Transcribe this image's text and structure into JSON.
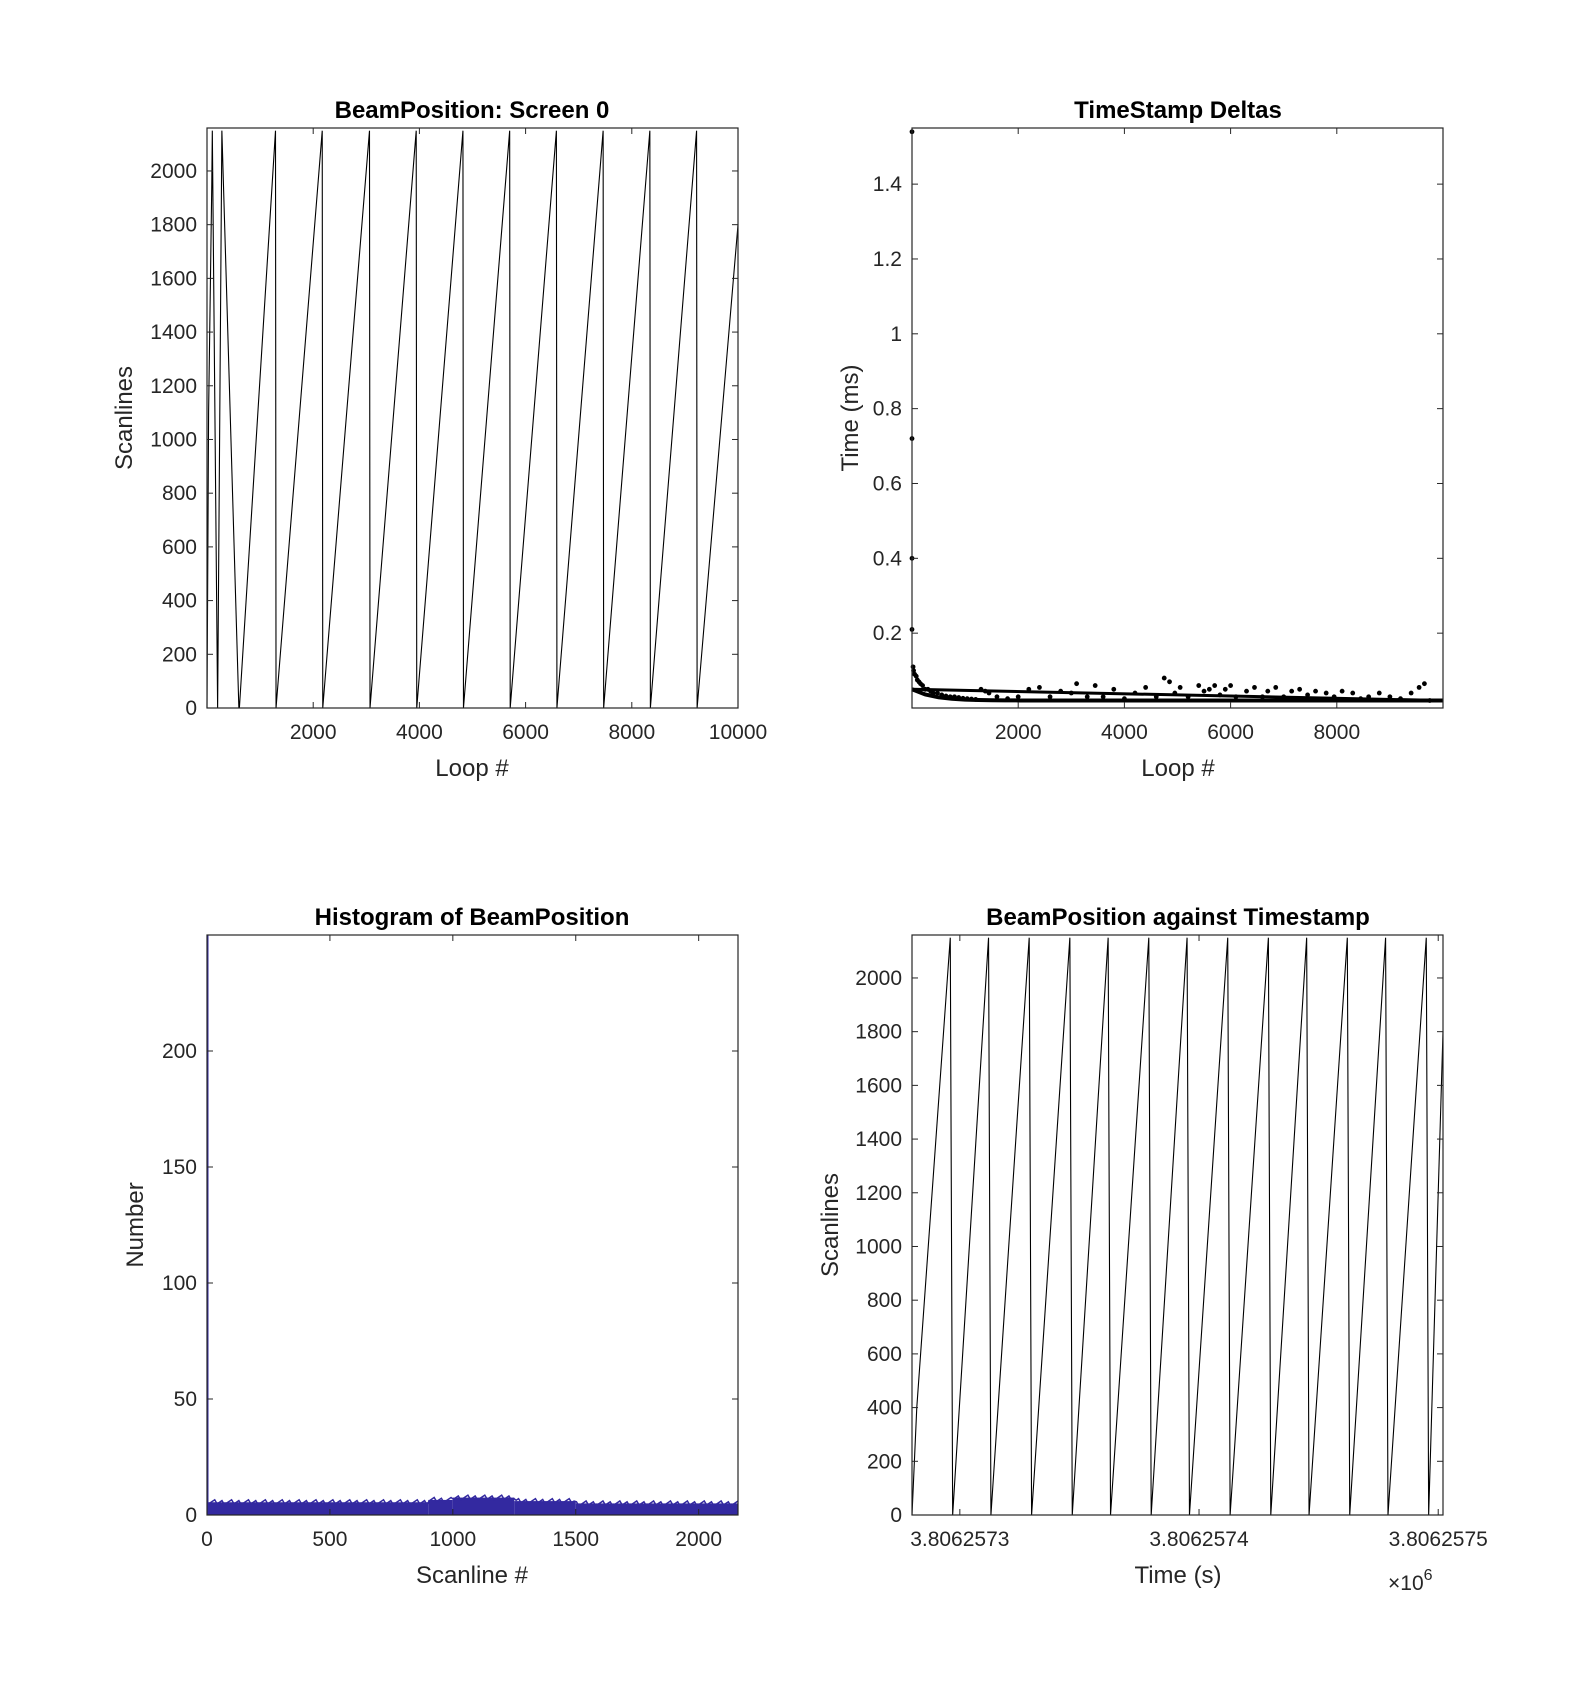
{
  "chart_data": [
    {
      "type": "line",
      "title": "BeamPosition: Screen 0",
      "xlabel": "Loop #",
      "ylabel": "Scanlines",
      "xlim": [
        0,
        10000
      ],
      "ylim": [
        0,
        2160
      ],
      "xticks": [
        2000,
        4000,
        6000,
        8000,
        10000
      ],
      "yticks": [
        0,
        200,
        400,
        600,
        800,
        1000,
        1200,
        1400,
        1600,
        1800,
        2000
      ],
      "tick_labels_x": [
        "2000",
        "4000",
        "6000",
        "8000",
        "10000"
      ],
      "tick_labels_y": [
        "0",
        "200",
        "400",
        "600",
        "800",
        "1000",
        "1200",
        "1400",
        "1600",
        "1800",
        "2000"
      ],
      "color": "#000000",
      "series": [
        {
          "x": [
            0,
            30,
            90,
            100,
            200,
            280,
            600,
            610,
            1290,
            1300,
            2170,
            2180,
            3060,
            3070,
            3940,
            3950,
            4820,
            4830,
            5700,
            5710,
            6580,
            6590,
            7460,
            7470,
            8340,
            8350,
            9220,
            9230,
            10000
          ],
          "y": [
            0,
            1100,
            1950,
            2150,
            0,
            2150,
            0,
            0,
            2150,
            0,
            2150,
            0,
            2150,
            0,
            2150,
            0,
            2150,
            0,
            2150,
            0,
            2150,
            0,
            2150,
            0,
            2150,
            0,
            2150,
            0,
            1800
          ]
        }
      ]
    },
    {
      "type": "scatter",
      "title": "TimeStamp Deltas",
      "xlabel": "Loop #",
      "ylabel": "Time (ms)",
      "xlim": [
        0,
        10000
      ],
      "ylim": [
        0,
        1.55
      ],
      "xticks": [
        2000,
        4000,
        6000,
        8000
      ],
      "yticks": [
        0.2,
        0.4,
        0.6,
        0.8,
        1.0,
        1.2,
        1.4
      ],
      "tick_labels_x": [
        "2000",
        "4000",
        "6000",
        "8000"
      ],
      "tick_labels_y": [
        "0.2",
        "0.4",
        "0.6",
        "0.8",
        "1",
        "1.2",
        "1.4"
      ],
      "color": "#000000",
      "points": [
        [
          0,
          1.54
        ],
        [
          0,
          0.72
        ],
        [
          0,
          0.4
        ],
        [
          0,
          0.21
        ],
        [
          20,
          0.11
        ],
        [
          30,
          0.1
        ],
        [
          50,
          0.09
        ],
        [
          80,
          0.085
        ],
        [
          100,
          0.075
        ],
        [
          130,
          0.07
        ],
        [
          160,
          0.065
        ],
        [
          200,
          0.06
        ],
        [
          250,
          0.05
        ],
        [
          300,
          0.05
        ],
        [
          350,
          0.045
        ],
        [
          400,
          0.04
        ],
        [
          480,
          0.04
        ],
        [
          560,
          0.035
        ],
        [
          640,
          0.032
        ],
        [
          720,
          0.03
        ],
        [
          800,
          0.03
        ],
        [
          880,
          0.028
        ],
        [
          960,
          0.026
        ],
        [
          1040,
          0.025
        ],
        [
          1120,
          0.024
        ],
        [
          1200,
          0.023
        ],
        [
          1300,
          0.05
        ],
        [
          1380,
          0.045
        ],
        [
          1450,
          0.04
        ],
        [
          1600,
          0.03
        ],
        [
          1800,
          0.025
        ],
        [
          2000,
          0.03
        ],
        [
          2200,
          0.05
        ],
        [
          2400,
          0.055
        ],
        [
          2600,
          0.03
        ],
        [
          2800,
          0.045
        ],
        [
          3000,
          0.04
        ],
        [
          3100,
          0.065
        ],
        [
          3300,
          0.03
        ],
        [
          3450,
          0.06
        ],
        [
          3600,
          0.03
        ],
        [
          3800,
          0.05
        ],
        [
          4000,
          0.025
        ],
        [
          4200,
          0.04
        ],
        [
          4400,
          0.055
        ],
        [
          4600,
          0.03
        ],
        [
          4750,
          0.08
        ],
        [
          4850,
          0.07
        ],
        [
          4950,
          0.04
        ],
        [
          5050,
          0.055
        ],
        [
          5200,
          0.03
        ],
        [
          5400,
          0.06
        ],
        [
          5500,
          0.045
        ],
        [
          5600,
          0.05
        ],
        [
          5700,
          0.06
        ],
        [
          5800,
          0.035
        ],
        [
          5900,
          0.05
        ],
        [
          6000,
          0.06
        ],
        [
          6100,
          0.03
        ],
        [
          6300,
          0.045
        ],
        [
          6450,
          0.055
        ],
        [
          6600,
          0.03
        ],
        [
          6700,
          0.045
        ],
        [
          6850,
          0.055
        ],
        [
          7000,
          0.03
        ],
        [
          7150,
          0.045
        ],
        [
          7300,
          0.05
        ],
        [
          7450,
          0.035
        ],
        [
          7600,
          0.045
        ],
        [
          7800,
          0.04
        ],
        [
          7950,
          0.03
        ],
        [
          8100,
          0.045
        ],
        [
          8300,
          0.04
        ],
        [
          8450,
          0.025
        ],
        [
          8600,
          0.03
        ],
        [
          8800,
          0.04
        ],
        [
          9000,
          0.03
        ],
        [
          9200,
          0.025
        ],
        [
          9400,
          0.04
        ],
        [
          9550,
          0.055
        ],
        [
          9650,
          0.065
        ],
        [
          9750,
          0.02
        ]
      ],
      "baseline": {
        "from": 0,
        "to": 10000,
        "start": 0.05,
        "end": 0.02
      }
    },
    {
      "type": "bar",
      "title": "Histogram of BeamPosition",
      "xlabel": "Scanline #",
      "ylabel": "Number",
      "xlim": [
        0,
        2160
      ],
      "ylim": [
        0,
        250
      ],
      "xticks": [
        0,
        500,
        1000,
        1500,
        2000
      ],
      "yticks": [
        0,
        50,
        100,
        150,
        200
      ],
      "tick_labels_x": [
        "0",
        "500",
        "1000",
        "1500",
        "2000"
      ],
      "tick_labels_y": [
        "0",
        "50",
        "100",
        "150",
        "200"
      ],
      "color": "#3329a0",
      "bins": [
        {
          "from": 0,
          "to": 2,
          "count": 250
        },
        {
          "from": 2,
          "to": 900,
          "count": 5.5
        },
        {
          "from": 900,
          "to": 1000,
          "count": 6.5
        },
        {
          "from": 1000,
          "to": 1250,
          "count": 7.5
        },
        {
          "from": 1250,
          "to": 1500,
          "count": 6
        },
        {
          "from": 1500,
          "to": 2160,
          "count": 5
        }
      ]
    },
    {
      "type": "line",
      "title": "BeamPosition against Timestamp",
      "xlabel": "Time (s)",
      "ylabel": "Scanlines",
      "xlim": [
        3.80625728,
        3.806257502
      ],
      "ylim": [
        0,
        2160
      ],
      "xticks": [
        3.8062573,
        3.8062574,
        3.8062575
      ],
      "yticks": [
        0,
        200,
        400,
        600,
        800,
        1000,
        1200,
        1400,
        1600,
        1800,
        2000
      ],
      "tick_labels_x": [
        "3.8062573",
        "3.8062574",
        "3.8062575"
      ],
      "tick_labels_y": [
        "0",
        "200",
        "400",
        "600",
        "800",
        "1000",
        "1200",
        "1400",
        "1600",
        "1800",
        "2000"
      ],
      "exponent_label": "×10",
      "exponent_power": "6",
      "color": "#000000",
      "series": [
        {
          "x": [
            3.80625728,
            3.806257282,
            3.806257296,
            3.806257297,
            3.806257312,
            3.806257313,
            3.806257329,
            3.80625733,
            3.806257346,
            3.806257347,
            3.806257362,
            3.806257363,
            3.806257379,
            3.80625738,
            3.806257395,
            3.806257396,
            3.806257412,
            3.806257413,
            3.806257429,
            3.80625743,
            3.806257445,
            3.806257446,
            3.806257462,
            3.806257463,
            3.806257478,
            3.806257479,
            3.806257495,
            3.806257496,
            3.806257502
          ],
          "y": [
            0,
            400,
            2150,
            0,
            2150,
            0,
            2150,
            0,
            2150,
            0,
            2150,
            0,
            2150,
            0,
            2150,
            0,
            2150,
            0,
            2150,
            0,
            2150,
            0,
            2150,
            0,
            2150,
            0,
            2150,
            0,
            1800
          ]
        }
      ]
    }
  ]
}
